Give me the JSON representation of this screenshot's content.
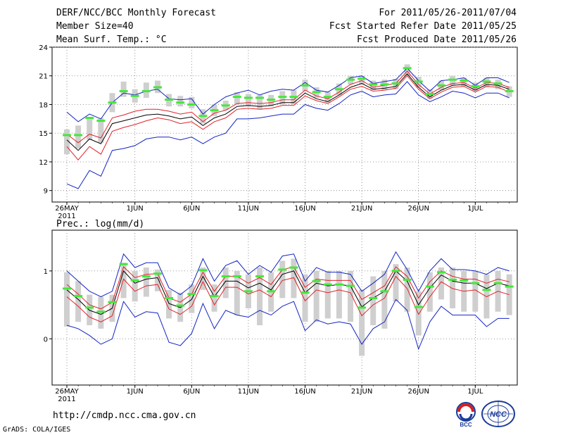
{
  "header": {
    "left": [
      "DERF/NCC/BCC Monthly Forecast",
      "Member Size=40",
      "Mean Surf. Temp.: °C"
    ],
    "right": [
      "For 2011/05/26-2011/07/04",
      "Fcst Started Refer Date 2011/05/25",
      "Fcst Produced Date 2011/05/26"
    ]
  },
  "panel2_label": "Prec.: log(mm/d)",
  "footer": {
    "url": "http://cmdp.ncc.cma.gov.cn",
    "credit": "GrADS: COLA/IGES",
    "logo_left": "BCC",
    "logo_right": "NCC"
  },
  "colors": {
    "green": "#44e83c",
    "gray": "#cfcfcf",
    "red": "#e2212a",
    "blue": "#1424c2",
    "black": "#000000",
    "grid": "#7a7a7a"
  },
  "chart_data": [
    {
      "type": "line",
      "title": "Mean Surf. Temp.: °C",
      "x_ticks": [
        "26MAY",
        "1JUN",
        "6JUN",
        "11JUN",
        "16JUN",
        "21JUN",
        "26JUN",
        "1JUL"
      ],
      "x_tick_days": [
        0,
        6,
        11,
        16,
        21,
        26,
        31,
        36
      ],
      "year_label": "2011",
      "ylim": [
        8,
        24
      ],
      "yticks": [
        9,
        12,
        15,
        18,
        21,
        24
      ],
      "days": 40,
      "series": [
        {
          "name": "ensemble mean",
          "color": "black",
          "values": [
            14.3,
            13.2,
            14.4,
            13.9,
            16.0,
            16.3,
            16.6,
            16.9,
            17.0,
            16.8,
            16.5,
            16.7,
            15.8,
            16.6,
            17.0,
            17.8,
            17.9,
            17.8,
            17.9,
            18.2,
            18.2,
            19.2,
            18.6,
            18.3,
            19.0,
            19.8,
            20.2,
            19.6,
            19.7,
            19.9,
            21.2,
            19.8,
            18.8,
            19.5,
            20.0,
            20.1,
            19.5,
            20.1,
            20.0,
            19.6
          ]
        },
        {
          "name": "upper red",
          "color": "red",
          "values": [
            14.9,
            14.0,
            14.9,
            14.5,
            16.6,
            16.9,
            17.3,
            17.5,
            17.5,
            17.3,
            17.0,
            17.2,
            16.2,
            17.1,
            17.4,
            18.1,
            18.2,
            18.1,
            18.2,
            18.5,
            18.5,
            19.5,
            18.9,
            18.6,
            19.3,
            20.1,
            20.5,
            19.8,
            20.0,
            20.2,
            21.5,
            20.1,
            19.1,
            19.8,
            20.2,
            20.3,
            19.7,
            20.3,
            20.2,
            19.8
          ]
        },
        {
          "name": "lower red",
          "color": "red",
          "values": [
            13.6,
            12.2,
            13.6,
            12.8,
            15.2,
            15.6,
            15.9,
            16.3,
            16.6,
            16.4,
            16.0,
            16.2,
            15.4,
            16.2,
            16.6,
            17.5,
            17.6,
            17.5,
            17.6,
            17.9,
            17.9,
            18.9,
            18.4,
            18.1,
            18.8,
            19.6,
            19.9,
            19.4,
            19.5,
            19.7,
            21.0,
            19.6,
            18.6,
            19.3,
            19.8,
            19.9,
            19.3,
            19.9,
            19.8,
            19.3
          ]
        },
        {
          "name": "max",
          "color": "blue",
          "values": [
            17.2,
            16.2,
            17.0,
            16.5,
            18.2,
            19.2,
            19.0,
            19.4,
            19.6,
            18.6,
            18.5,
            18.6,
            17.0,
            18.0,
            18.8,
            19.2,
            19.5,
            19.0,
            19.4,
            19.6,
            19.5,
            20.3,
            19.5,
            19.3,
            20.0,
            20.8,
            21.0,
            20.2,
            20.4,
            20.6,
            21.8,
            20.5,
            19.4,
            20.5,
            20.6,
            20.8,
            20.0,
            20.8,
            20.8,
            20.3
          ]
        },
        {
          "name": "min",
          "color": "blue",
          "values": [
            9.7,
            9.2,
            11.1,
            10.5,
            13.2,
            13.4,
            13.7,
            14.4,
            14.6,
            14.6,
            14.3,
            14.6,
            13.9,
            14.6,
            15.0,
            16.5,
            16.5,
            16.6,
            16.8,
            17.0,
            17.0,
            18.0,
            17.6,
            17.4,
            18.1,
            19.0,
            19.4,
            18.8,
            19.0,
            19.1,
            20.4,
            19.0,
            18.3,
            18.8,
            19.4,
            19.2,
            18.7,
            19.2,
            19.2,
            18.7
          ]
        }
      ],
      "green_marks": [
        14.8,
        14.8,
        16.6,
        16.3,
        18.2,
        19.4,
        18.9,
        19.4,
        19.8,
        18.5,
        18.2,
        18.0,
        16.8,
        17.4,
        17.9,
        18.8,
        18.7,
        18.7,
        18.5,
        18.8,
        18.8,
        20.0,
        19.3,
        18.8,
        19.6,
        20.6,
        20.7,
        20.1,
        20.1,
        20.2,
        21.8,
        20.4,
        19.1,
        20.0,
        20.6,
        20.5,
        19.9,
        20.4,
        20.2,
        19.4
      ],
      "box_ranges": [
        [
          12.8,
          15.4
        ],
        [
          13.4,
          15.8
        ],
        [
          14.3,
          16.7
        ],
        [
          14.0,
          16.6
        ],
        [
          17.2,
          19.2
        ],
        [
          18.8,
          20.4
        ],
        [
          18.2,
          19.6
        ],
        [
          18.7,
          20.3
        ],
        [
          19.2,
          20.5
        ],
        [
          17.8,
          19.1
        ],
        [
          17.8,
          18.9
        ],
        [
          17.6,
          18.8
        ],
        [
          16.0,
          17.5
        ],
        [
          16.8,
          18.0
        ],
        [
          17.4,
          18.4
        ],
        [
          18.0,
          19.3
        ],
        [
          17.8,
          19.1
        ],
        [
          17.5,
          19.0
        ],
        [
          17.8,
          19.0
        ],
        [
          18.0,
          19.4
        ],
        [
          18.0,
          19.5
        ],
        [
          19.4,
          20.6
        ],
        [
          18.7,
          19.8
        ],
        [
          18.2,
          19.3
        ],
        [
          19.0,
          20.2
        ],
        [
          20.1,
          21.0
        ],
        [
          20.1,
          21.0
        ],
        [
          19.5,
          20.5
        ],
        [
          19.5,
          20.6
        ],
        [
          19.6,
          20.7
        ],
        [
          21.0,
          22.2
        ],
        [
          19.8,
          20.9
        ],
        [
          18.6,
          19.6
        ],
        [
          19.5,
          20.5
        ],
        [
          20.0,
          21.0
        ],
        [
          19.9,
          20.8
        ],
        [
          19.4,
          20.3
        ],
        [
          19.8,
          20.8
        ],
        [
          19.6,
          20.6
        ],
        [
          18.8,
          19.9
        ]
      ]
    },
    {
      "type": "line",
      "title": "Prec.: log(mm/d)",
      "x_ticks": [
        "26MAY",
        "1JUN",
        "6JUN",
        "11JUN",
        "16JUN",
        "21JUN",
        "26JUN",
        "1JUL"
      ],
      "x_tick_days": [
        0,
        6,
        11,
        16,
        21,
        26,
        31,
        36
      ],
      "year_label": "2011",
      "ylim": [
        -0.6,
        1.6
      ],
      "yticks": [
        0,
        1
      ],
      "days": 40,
      "series": [
        {
          "name": "ensemble mean",
          "color": "black",
          "values": [
            0.72,
            0.58,
            0.42,
            0.36,
            0.45,
            1.0,
            0.82,
            0.88,
            0.9,
            0.52,
            0.46,
            0.58,
            0.92,
            0.62,
            0.85,
            0.85,
            0.75,
            0.82,
            0.72,
            0.95,
            1.0,
            0.68,
            0.82,
            0.78,
            0.8,
            0.78,
            0.47,
            0.6,
            0.7,
            1.0,
            0.85,
            0.5,
            0.75,
            0.94,
            0.85,
            0.82,
            0.82,
            0.74,
            0.82,
            0.78
          ]
        },
        {
          "name": "upper red",
          "color": "red",
          "values": [
            0.8,
            0.66,
            0.5,
            0.44,
            0.54,
            1.06,
            0.9,
            0.95,
            0.96,
            0.6,
            0.54,
            0.66,
            0.98,
            0.7,
            0.92,
            0.92,
            0.82,
            0.9,
            0.8,
            1.02,
            1.06,
            0.76,
            0.88,
            0.86,
            0.86,
            0.86,
            0.58,
            0.68,
            0.78,
            1.06,
            0.92,
            0.6,
            0.84,
            1.0,
            0.92,
            0.88,
            0.88,
            0.82,
            0.88,
            0.84
          ]
        },
        {
          "name": "lower red",
          "color": "red",
          "values": [
            0.62,
            0.48,
            0.32,
            0.25,
            0.34,
            0.88,
            0.7,
            0.78,
            0.8,
            0.44,
            0.36,
            0.48,
            0.84,
            0.5,
            0.76,
            0.76,
            0.66,
            0.72,
            0.62,
            0.86,
            0.9,
            0.56,
            0.72,
            0.68,
            0.72,
            0.68,
            0.34,
            0.5,
            0.6,
            0.92,
            0.74,
            0.36,
            0.62,
            0.84,
            0.74,
            0.7,
            0.72,
            0.62,
            0.7,
            0.65
          ]
        },
        {
          "name": "max",
          "color": "blue",
          "values": [
            1.0,
            0.85,
            0.7,
            0.62,
            0.7,
            1.25,
            1.05,
            1.12,
            1.12,
            0.75,
            0.65,
            0.78,
            1.18,
            0.85,
            1.08,
            1.15,
            0.95,
            1.08,
            0.98,
            1.22,
            1.25,
            0.85,
            1.05,
            0.98,
            0.98,
            0.95,
            0.7,
            0.82,
            0.95,
            1.28,
            1.02,
            0.7,
            1.0,
            1.18,
            1.02,
            1.02,
            1.0,
            0.95,
            1.05,
            1.0
          ]
        },
        {
          "name": "min",
          "color": "blue",
          "values": [
            0.2,
            0.15,
            0.05,
            -0.08,
            0.0,
            0.55,
            0.32,
            0.4,
            0.38,
            -0.05,
            -0.1,
            0.08,
            0.52,
            0.15,
            0.42,
            0.35,
            0.32,
            0.42,
            0.35,
            0.48,
            0.55,
            0.12,
            0.28,
            0.22,
            0.25,
            0.22,
            -0.08,
            0.15,
            0.25,
            0.58,
            0.42,
            -0.15,
            0.25,
            0.48,
            0.35,
            0.35,
            0.35,
            0.18,
            0.3,
            0.3
          ]
        }
      ],
      "green_marks": [
        0.74,
        0.63,
        0.46,
        0.4,
        0.54,
        1.1,
        0.86,
        0.92,
        0.96,
        0.6,
        0.49,
        0.66,
        1.01,
        0.63,
        0.92,
        0.92,
        0.7,
        0.92,
        0.7,
        1.02,
        1.05,
        0.68,
        0.85,
        0.8,
        0.8,
        0.78,
        0.46,
        0.6,
        0.7,
        1.0,
        0.87,
        0.47,
        0.77,
        0.98,
        0.87,
        0.86,
        0.82,
        0.72,
        0.82,
        0.77
      ],
      "box_ranges": [
        [
          0.18,
          0.98
        ],
        [
          0.25,
          0.85
        ],
        [
          0.2,
          0.65
        ],
        [
          0.15,
          0.62
        ],
        [
          0.25,
          0.65
        ],
        [
          0.6,
          1.12
        ],
        [
          0.55,
          1.0
        ],
        [
          0.62,
          1.05
        ],
        [
          0.7,
          1.02
        ],
        [
          0.3,
          0.72
        ],
        [
          0.25,
          0.68
        ],
        [
          0.38,
          0.8
        ],
        [
          0.72,
          1.05
        ],
        [
          0.4,
          0.8
        ],
        [
          0.6,
          1.05
        ],
        [
          0.35,
          1.0
        ],
        [
          0.45,
          0.95
        ],
        [
          0.2,
          1.05
        ],
        [
          0.4,
          0.98
        ],
        [
          0.6,
          1.15
        ],
        [
          0.6,
          1.18
        ],
        [
          0.25,
          0.95
        ],
        [
          0.25,
          1.0
        ],
        [
          0.3,
          1.0
        ],
        [
          0.3,
          1.0
        ],
        [
          0.25,
          1.0
        ],
        [
          -0.25,
          0.72
        ],
        [
          0.2,
          0.92
        ],
        [
          0.15,
          1.0
        ],
        [
          0.55,
          1.1
        ],
        [
          0.4,
          1.05
        ],
        [
          0.05,
          0.7
        ],
        [
          0.4,
          0.98
        ],
        [
          0.58,
          1.05
        ],
        [
          0.45,
          1.05
        ],
        [
          0.4,
          1.0
        ],
        [
          0.4,
          1.0
        ],
        [
          0.3,
          0.95
        ],
        [
          0.4,
          1.0
        ],
        [
          0.35,
          0.95
        ]
      ]
    }
  ]
}
